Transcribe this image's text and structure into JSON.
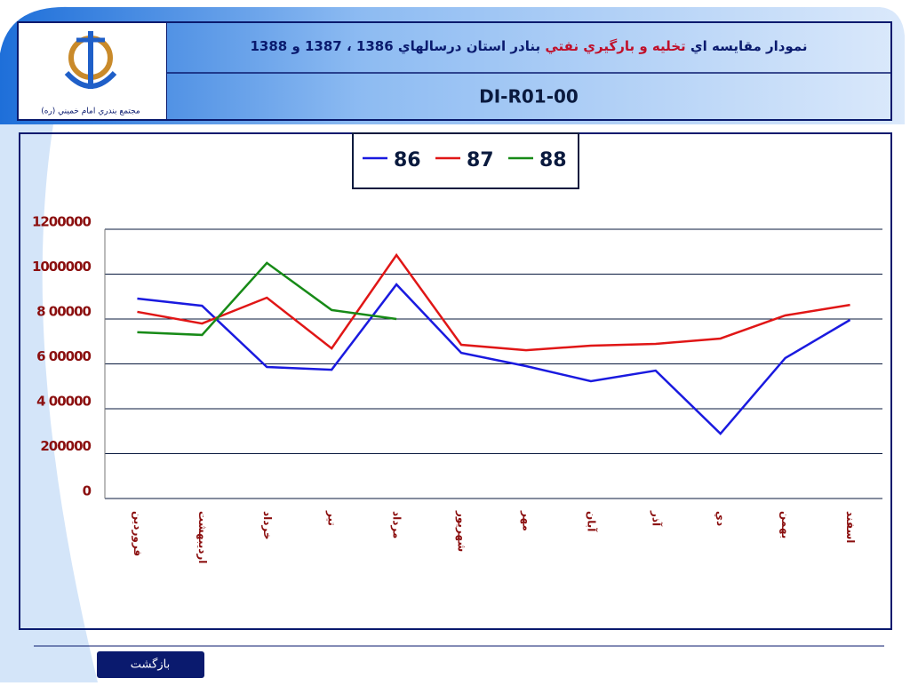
{
  "header": {
    "title_parts": [
      "نمودار مقايسه اي ",
      "تخليه و بارگيري نفتي",
      " بنادر استان درسالهاي 1386 ، 1387 و 1388"
    ],
    "code": "DI-R01-00",
    "logo_caption": "مجتمع بندري امام خميني (ره)"
  },
  "chart_data": {
    "type": "line",
    "categories": [
      "فروردين",
      "ارديبهشت",
      "خرداد",
      "تير",
      "مرداد",
      "شهريور",
      "مهر",
      "آبان",
      "آذر",
      "دي",
      "بهمن",
      "اسفند"
    ],
    "series": [
      {
        "name": "86",
        "color": "#1a1adf",
        "values": [
          891000,
          859000,
          586000,
          574000,
          954000,
          649000,
          590000,
          523000,
          570000,
          289000,
          626000,
          796000
        ]
      },
      {
        "name": "87",
        "color": "#e01616",
        "values": [
          832000,
          780000,
          895000,
          669000,
          1085000,
          685000,
          661000,
          681000,
          689000,
          713000,
          816000,
          863000
        ]
      },
      {
        "name": "88",
        "color": "#178a17",
        "values": [
          741000,
          729000,
          1050000,
          840000,
          800000,
          null,
          null,
          null,
          null,
          null,
          null,
          null
        ]
      }
    ],
    "ylim": [
      0,
      1200000
    ],
    "yticks": [
      0,
      200000,
      {
        "value": 400000,
        "label": "4 00000"
      },
      {
        "value": 600000,
        "label": "6 00000"
      },
      {
        "value": 800000,
        "label": "8 00000"
      },
      1000000,
      1200000
    ],
    "grid": true,
    "legend": "top"
  },
  "footer": {
    "button": "بازگشت"
  }
}
